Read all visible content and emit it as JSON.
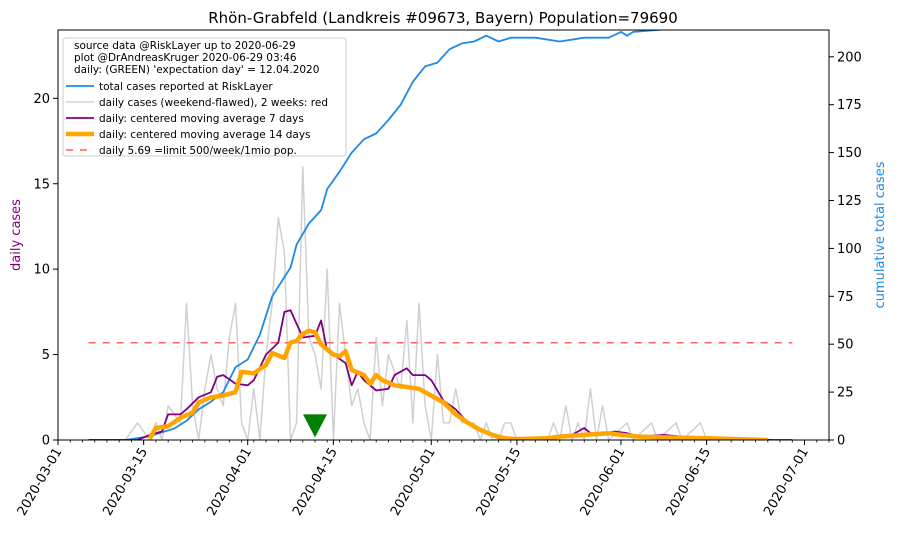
{
  "chart_data": {
    "type": "line",
    "title": "Rhön-Grabfeld (Landkreis #09673, Bayern) Population=79690",
    "ylabel_left": "daily cases",
    "ylabel_right": "cumulative total cases",
    "xlim": [
      "2020-03-01",
      "2020-07-05"
    ],
    "ylim_left": [
      0,
      24
    ],
    "ylim_right": [
      0,
      214
    ],
    "x_ticks": [
      "2020-03-01",
      "2020-03-15",
      "2020-04-01",
      "2020-04-15",
      "2020-05-01",
      "2020-05-15",
      "2020-06-01",
      "2020-06-15",
      "2020-07-01"
    ],
    "y_ticks_left": [
      0,
      5,
      10,
      15,
      20
    ],
    "y_ticks_right": [
      0,
      25,
      50,
      75,
      100,
      125,
      150,
      175,
      200
    ],
    "legend_position": "upper-left",
    "legend_text": [
      "source data @RiskLayer up to 2020-06-29",
      "plot @DrAndreasKruger 2020-06-29 03:46",
      "daily: (GREEN) 'expectation day' = 12.04.2020"
    ],
    "series": [
      {
        "name": "total cases reported at RiskLayer",
        "axis": "right",
        "color": "#1f8ae6",
        "points": [
          [
            "2020-03-06",
            0
          ],
          [
            "2020-03-12",
            0
          ],
          [
            "2020-03-14",
            1
          ],
          [
            "2020-03-16",
            2
          ],
          [
            "2020-03-18",
            4
          ],
          [
            "2020-03-20",
            6
          ],
          [
            "2020-03-22",
            10
          ],
          [
            "2020-03-24",
            16
          ],
          [
            "2020-03-26",
            20
          ],
          [
            "2020-03-28",
            25
          ],
          [
            "2020-03-30",
            38
          ],
          [
            "2020-04-01",
            42
          ],
          [
            "2020-04-03",
            55
          ],
          [
            "2020-04-05",
            75
          ],
          [
            "2020-04-07",
            85
          ],
          [
            "2020-04-08",
            90
          ],
          [
            "2020-04-09",
            102
          ],
          [
            "2020-04-11",
            113
          ],
          [
            "2020-04-13",
            120
          ],
          [
            "2020-04-14",
            131
          ],
          [
            "2020-04-16",
            140
          ],
          [
            "2020-04-18",
            150
          ],
          [
            "2020-04-20",
            157
          ],
          [
            "2020-04-22",
            160
          ],
          [
            "2020-04-24",
            167
          ],
          [
            "2020-04-26",
            175
          ],
          [
            "2020-04-28",
            187
          ],
          [
            "2020-04-30",
            195
          ],
          [
            "2020-05-02",
            197
          ],
          [
            "2020-05-04",
            204
          ],
          [
            "2020-05-06",
            207
          ],
          [
            "2020-05-08",
            208
          ],
          [
            "2020-05-10",
            211
          ],
          [
            "2020-05-12",
            208
          ],
          [
            "2020-05-14",
            210
          ],
          [
            "2020-05-18",
            210
          ],
          [
            "2020-05-22",
            208
          ],
          [
            "2020-05-26",
            210
          ],
          [
            "2020-05-30",
            210
          ],
          [
            "2020-06-01",
            213
          ],
          [
            "2020-06-02",
            211
          ],
          [
            "2020-06-03",
            213
          ],
          [
            "2020-06-07",
            214
          ],
          [
            "2020-06-13",
            216
          ],
          [
            "2020-06-17",
            217
          ],
          [
            "2020-06-29",
            217
          ]
        ]
      },
      {
        "name": "daily cases (weekend-flawed), 2 weeks: red",
        "axis": "left",
        "color": "#d0d0d0",
        "points": [
          [
            "2020-03-06",
            0
          ],
          [
            "2020-03-12",
            0
          ],
          [
            "2020-03-14",
            1
          ],
          [
            "2020-03-16",
            0
          ],
          [
            "2020-03-17",
            1
          ],
          [
            "2020-03-18",
            0
          ],
          [
            "2020-03-19",
            2
          ],
          [
            "2020-03-21",
            1
          ],
          [
            "2020-03-22",
            8
          ],
          [
            "2020-03-23",
            2
          ],
          [
            "2020-03-24",
            0
          ],
          [
            "2020-03-25",
            3
          ],
          [
            "2020-03-26",
            5
          ],
          [
            "2020-03-27",
            3
          ],
          [
            "2020-03-28",
            2
          ],
          [
            "2020-03-29",
            6
          ],
          [
            "2020-03-30",
            8
          ],
          [
            "2020-03-31",
            1
          ],
          [
            "2020-04-01",
            0
          ],
          [
            "2020-04-02",
            3
          ],
          [
            "2020-04-03",
            0
          ],
          [
            "2020-04-04",
            5
          ],
          [
            "2020-04-05",
            8
          ],
          [
            "2020-04-06",
            13
          ],
          [
            "2020-04-07",
            11
          ],
          [
            "2020-04-08",
            0
          ],
          [
            "2020-04-09",
            1
          ],
          [
            "2020-04-10",
            16
          ],
          [
            "2020-04-11",
            6
          ],
          [
            "2020-04-12",
            5
          ],
          [
            "2020-04-13",
            3
          ],
          [
            "2020-04-14",
            10
          ],
          [
            "2020-04-15",
            0
          ],
          [
            "2020-04-16",
            8
          ],
          [
            "2020-04-17",
            5
          ],
          [
            "2020-04-18",
            2
          ],
          [
            "2020-04-19",
            3
          ],
          [
            "2020-04-20",
            1
          ],
          [
            "2020-04-21",
            0
          ],
          [
            "2020-04-22",
            6
          ],
          [
            "2020-04-23",
            2
          ],
          [
            "2020-04-24",
            5
          ],
          [
            "2020-04-25",
            4
          ],
          [
            "2020-04-26",
            3
          ],
          [
            "2020-04-27",
            7
          ],
          [
            "2020-04-28",
            1
          ],
          [
            "2020-04-29",
            8
          ],
          [
            "2020-04-30",
            2
          ],
          [
            "2020-05-01",
            0
          ],
          [
            "2020-05-02",
            5
          ],
          [
            "2020-05-03",
            1
          ],
          [
            "2020-05-04",
            1
          ],
          [
            "2020-05-05",
            3
          ],
          [
            "2020-05-06",
            1
          ],
          [
            "2020-05-07",
            1
          ],
          [
            "2020-05-08",
            1
          ],
          [
            "2020-05-09",
            0
          ],
          [
            "2020-05-10",
            1
          ],
          [
            "2020-05-11",
            0
          ],
          [
            "2020-05-12",
            0
          ],
          [
            "2020-05-13",
            1
          ],
          [
            "2020-05-14",
            1
          ],
          [
            "2020-05-15",
            0
          ],
          [
            "2020-05-20",
            0
          ],
          [
            "2020-05-21",
            1
          ],
          [
            "2020-05-22",
            0
          ],
          [
            "2020-05-23",
            2
          ],
          [
            "2020-05-24",
            0
          ],
          [
            "2020-05-25",
            1
          ],
          [
            "2020-05-26",
            0
          ],
          [
            "2020-05-27",
            3
          ],
          [
            "2020-05-28",
            0
          ],
          [
            "2020-05-29",
            2
          ],
          [
            "2020-05-30",
            0
          ],
          [
            "2020-06-02",
            1
          ],
          [
            "2020-06-03",
            0
          ],
          [
            "2020-06-06",
            1
          ],
          [
            "2020-06-07",
            0
          ],
          [
            "2020-06-10",
            1
          ],
          [
            "2020-06-11",
            0
          ],
          [
            "2020-06-14",
            1
          ],
          [
            "2020-06-15",
            0
          ],
          [
            "2020-06-29",
            0
          ]
        ]
      },
      {
        "name": "daily: centered moving average 7 days",
        "axis": "left",
        "color": "#800080",
        "points": [
          [
            "2020-03-06",
            0
          ],
          [
            "2020-03-14",
            0
          ],
          [
            "2020-03-16",
            0.3
          ],
          [
            "2020-03-18",
            0.5
          ],
          [
            "2020-03-19",
            1.5
          ],
          [
            "2020-03-21",
            1.5
          ],
          [
            "2020-03-22",
            1.8
          ],
          [
            "2020-03-24",
            2.5
          ],
          [
            "2020-03-26",
            2.8
          ],
          [
            "2020-03-27",
            3.7
          ],
          [
            "2020-03-28",
            3.8
          ],
          [
            "2020-03-30",
            3.3
          ],
          [
            "2020-04-01",
            3.2
          ],
          [
            "2020-04-02",
            3.5
          ],
          [
            "2020-04-04",
            5.0
          ],
          [
            "2020-04-06",
            5.7
          ],
          [
            "2020-04-07",
            7.5
          ],
          [
            "2020-04-08",
            7.6
          ],
          [
            "2020-04-09",
            6.8
          ],
          [
            "2020-04-10",
            6.0
          ],
          [
            "2020-04-12",
            6.1
          ],
          [
            "2020-04-13",
            7.0
          ],
          [
            "2020-04-14",
            5.2
          ],
          [
            "2020-04-15",
            5.0
          ],
          [
            "2020-04-17",
            4.5
          ],
          [
            "2020-04-18",
            3.2
          ],
          [
            "2020-04-19",
            4.0
          ],
          [
            "2020-04-20",
            3.5
          ],
          [
            "2020-04-22",
            2.9
          ],
          [
            "2020-04-24",
            3.0
          ],
          [
            "2020-04-25",
            3.8
          ],
          [
            "2020-04-27",
            4.2
          ],
          [
            "2020-04-28",
            3.8
          ],
          [
            "2020-04-30",
            3.8
          ],
          [
            "2020-05-01",
            3.5
          ],
          [
            "2020-05-03",
            2.3
          ],
          [
            "2020-05-05",
            1.8
          ],
          [
            "2020-05-07",
            1.0
          ],
          [
            "2020-05-08",
            0.7
          ],
          [
            "2020-05-10",
            0.4
          ],
          [
            "2020-05-12",
            0.1
          ],
          [
            "2020-05-14",
            0.1
          ],
          [
            "2020-05-16",
            0.0
          ],
          [
            "2020-05-22",
            0.2
          ],
          [
            "2020-05-24",
            0.3
          ],
          [
            "2020-05-26",
            0.7
          ],
          [
            "2020-05-27",
            0.4
          ],
          [
            "2020-05-28",
            0.3
          ],
          [
            "2020-05-31",
            0.5
          ],
          [
            "2020-06-02",
            0.4
          ],
          [
            "2020-06-04",
            0.2
          ],
          [
            "2020-06-08",
            0.3
          ],
          [
            "2020-06-11",
            0.2
          ],
          [
            "2020-06-14",
            0.1
          ],
          [
            "2020-06-18",
            0.1
          ],
          [
            "2020-06-22",
            0.05
          ],
          [
            "2020-06-26",
            0.0
          ],
          [
            "2020-06-29",
            0.0
          ]
        ]
      },
      {
        "name": "daily: centered moving average 14 days",
        "axis": "left",
        "color": "#ffa500",
        "points": [
          [
            "2020-03-16",
            0.1
          ],
          [
            "2020-03-17",
            0.7
          ],
          [
            "2020-03-19",
            0.8
          ],
          [
            "2020-03-21",
            1.3
          ],
          [
            "2020-03-23",
            1.6
          ],
          [
            "2020-03-24",
            2.2
          ],
          [
            "2020-03-26",
            2.5
          ],
          [
            "2020-03-28",
            2.6
          ],
          [
            "2020-03-30",
            2.8
          ],
          [
            "2020-03-31",
            4.0
          ],
          [
            "2020-04-02",
            3.9
          ],
          [
            "2020-04-04",
            4.4
          ],
          [
            "2020-04-05",
            5.1
          ],
          [
            "2020-04-07",
            4.8
          ],
          [
            "2020-04-08",
            5.7
          ],
          [
            "2020-04-09",
            5.8
          ],
          [
            "2020-04-10",
            6.2
          ],
          [
            "2020-04-11",
            6.4
          ],
          [
            "2020-04-12",
            6.3
          ],
          [
            "2020-04-13",
            5.6
          ],
          [
            "2020-04-14",
            5.3
          ],
          [
            "2020-04-15",
            5.0
          ],
          [
            "2020-04-16",
            4.9
          ],
          [
            "2020-04-17",
            5.2
          ],
          [
            "2020-04-18",
            4.1
          ],
          [
            "2020-04-20",
            3.8
          ],
          [
            "2020-04-21",
            3.3
          ],
          [
            "2020-04-22",
            3.8
          ],
          [
            "2020-04-23",
            3.5
          ],
          [
            "2020-04-25",
            3.2
          ],
          [
            "2020-04-27",
            3.1
          ],
          [
            "2020-04-29",
            3.0
          ],
          [
            "2020-04-30",
            2.8
          ],
          [
            "2020-05-01",
            2.6
          ],
          [
            "2020-05-03",
            2.2
          ],
          [
            "2020-05-05",
            1.5
          ],
          [
            "2020-05-07",
            1.0
          ],
          [
            "2020-05-09",
            0.6
          ],
          [
            "2020-05-11",
            0.3
          ],
          [
            "2020-05-13",
            0.1
          ],
          [
            "2020-05-15",
            0.05
          ],
          [
            "2020-05-20",
            0.1
          ],
          [
            "2020-05-22",
            0.2
          ],
          [
            "2020-05-26",
            0.3
          ],
          [
            "2020-05-30",
            0.4
          ],
          [
            "2020-06-01",
            0.3
          ],
          [
            "2020-06-04",
            0.2
          ],
          [
            "2020-06-08",
            0.15
          ],
          [
            "2020-06-15",
            0.1
          ],
          [
            "2020-06-20",
            0.05
          ],
          [
            "2020-06-25",
            0.0
          ]
        ]
      },
      {
        "name": "daily 5.69 =limit 500/week/1mio pop.",
        "axis": "left",
        "color": "#ff6060",
        "dashed": true,
        "points": [
          [
            "2020-03-06",
            5.69
          ],
          [
            "2020-06-29",
            5.69
          ]
        ]
      }
    ],
    "annotations": [
      {
        "type": "triangle-down-marker",
        "color": "#008000",
        "x": "2020-04-12",
        "y": 0.8
      }
    ]
  }
}
